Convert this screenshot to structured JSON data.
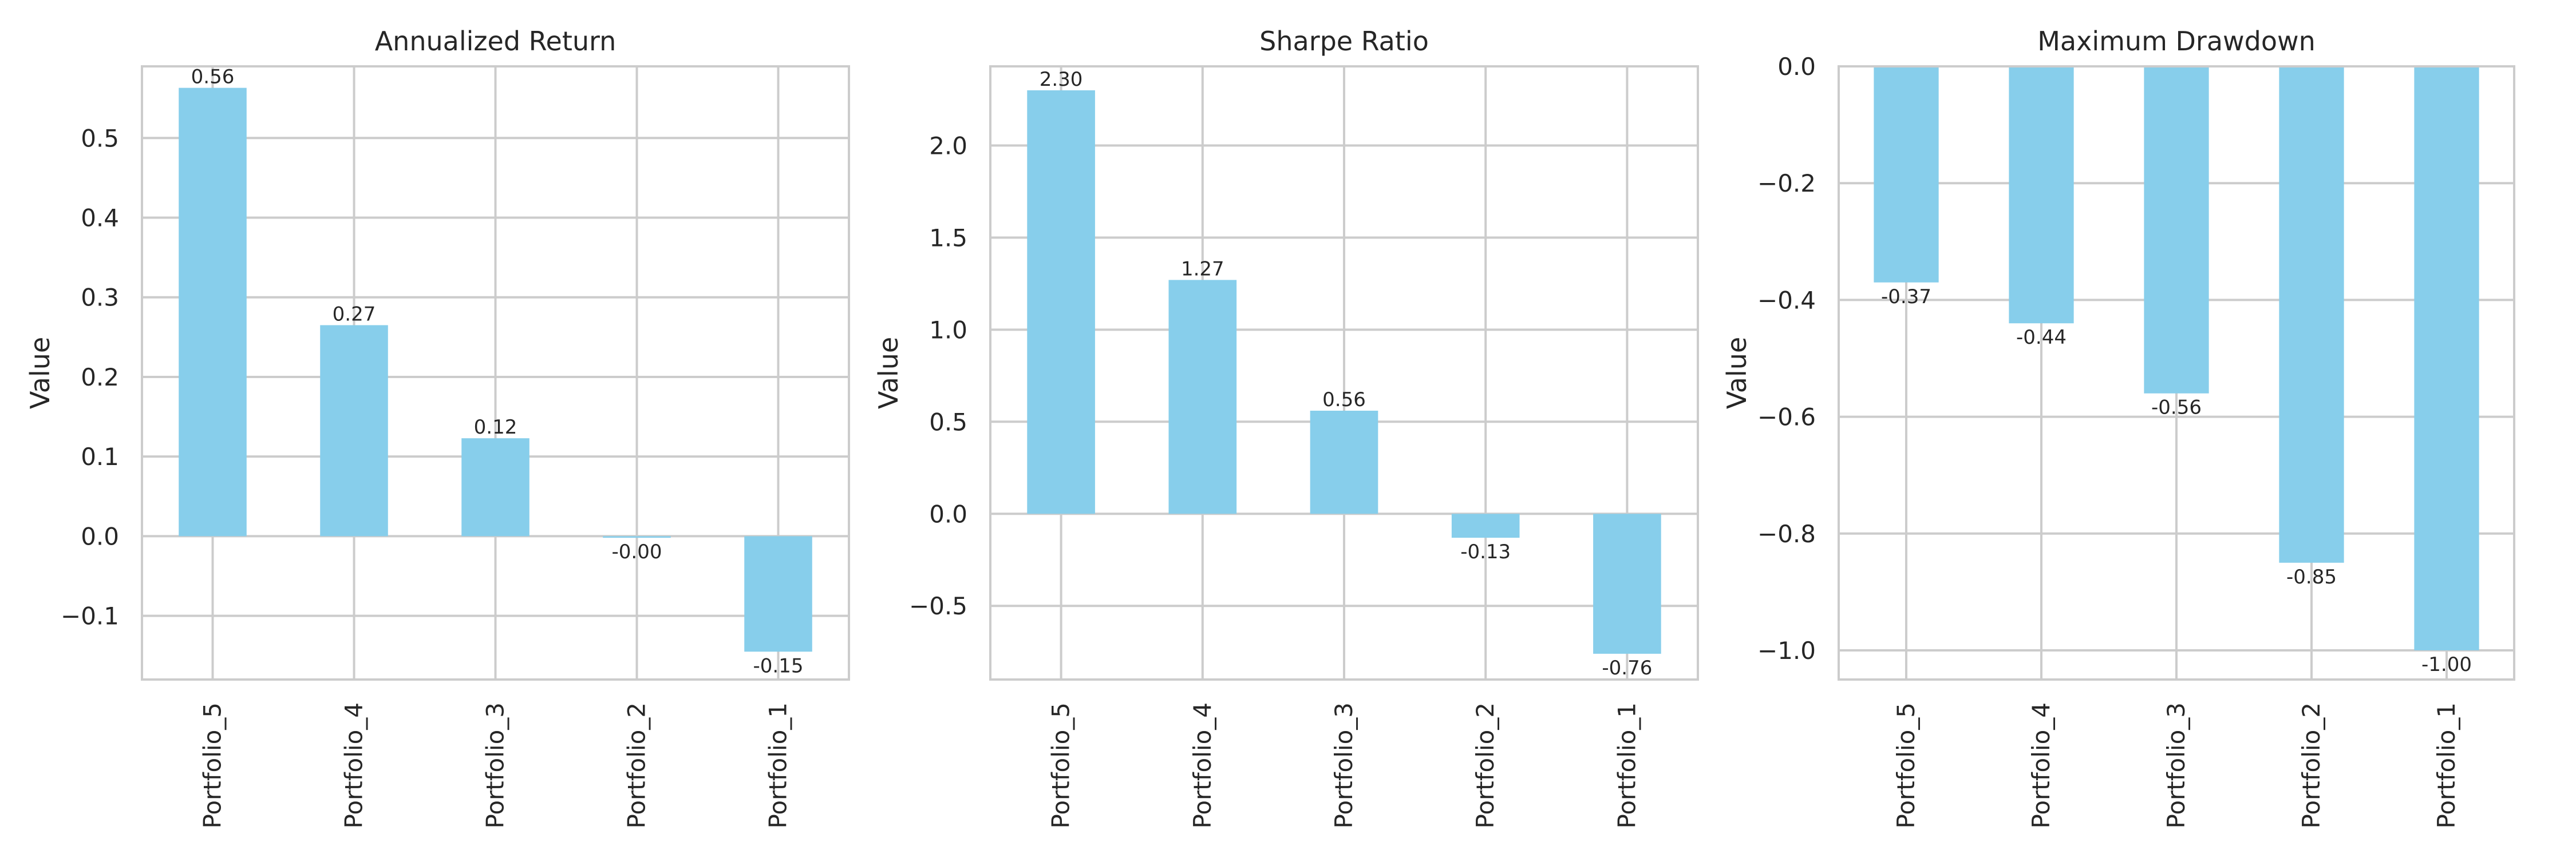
{
  "chart_data": [
    {
      "type": "bar",
      "title": "Annualized Return",
      "xlabel": "",
      "ylabel": "Value",
      "categories": [
        "Portfolio_5",
        "Portfolio_4",
        "Portfolio_3",
        "Portfolio_2",
        "Portfolio_1"
      ],
      "values": [
        0.563,
        0.265,
        0.123,
        -0.002,
        -0.145
      ],
      "value_labels": [
        "0.56",
        "0.27",
        "0.12",
        "-0.00",
        "-0.15"
      ],
      "ylim": [
        -0.18,
        0.59
      ],
      "yticks": [
        -0.1,
        0.0,
        0.1,
        0.2,
        0.3,
        0.4,
        0.5
      ],
      "ytick_labels": [
        "−0.1",
        "0.0",
        "0.1",
        "0.2",
        "0.3",
        "0.4",
        "0.5"
      ],
      "grid": true
    },
    {
      "type": "bar",
      "title": "Sharpe Ratio",
      "xlabel": "",
      "ylabel": "Value",
      "categories": [
        "Portfolio_5",
        "Portfolio_4",
        "Portfolio_3",
        "Portfolio_2",
        "Portfolio_1"
      ],
      "values": [
        2.3,
        1.27,
        0.56,
        -0.13,
        -0.76
      ],
      "value_labels": [
        "2.30",
        "1.27",
        "0.56",
        "-0.13",
        "-0.76"
      ],
      "ylim": [
        -0.9,
        2.43
      ],
      "yticks": [
        -0.5,
        0.0,
        0.5,
        1.0,
        1.5,
        2.0
      ],
      "ytick_labels": [
        "−0.5",
        "0.0",
        "0.5",
        "1.0",
        "1.5",
        "2.0"
      ],
      "grid": true
    },
    {
      "type": "bar",
      "title": "Maximum Drawdown",
      "xlabel": "",
      "ylabel": "Value",
      "categories": [
        "Portfolio_5",
        "Portfolio_4",
        "Portfolio_3",
        "Portfolio_2",
        "Portfolio_1"
      ],
      "values": [
        -0.37,
        -0.44,
        -0.56,
        -0.85,
        -1.0
      ],
      "value_labels": [
        "-0.37",
        "-0.44",
        "-0.56",
        "-0.85",
        "-1.00"
      ],
      "ylim": [
        -1.05,
        0.0
      ],
      "yticks": [
        -1.0,
        -0.8,
        -0.6,
        -0.4,
        -0.2,
        0.0
      ],
      "ytick_labels": [
        "−1.0",
        "−0.8",
        "−0.6",
        "−0.4",
        "−0.2",
        "0.0"
      ],
      "grid": true
    }
  ],
  "colors": {
    "bar": "#87ceeb",
    "grid": "#cccccc",
    "text": "#262626",
    "background": "#ffffff"
  }
}
